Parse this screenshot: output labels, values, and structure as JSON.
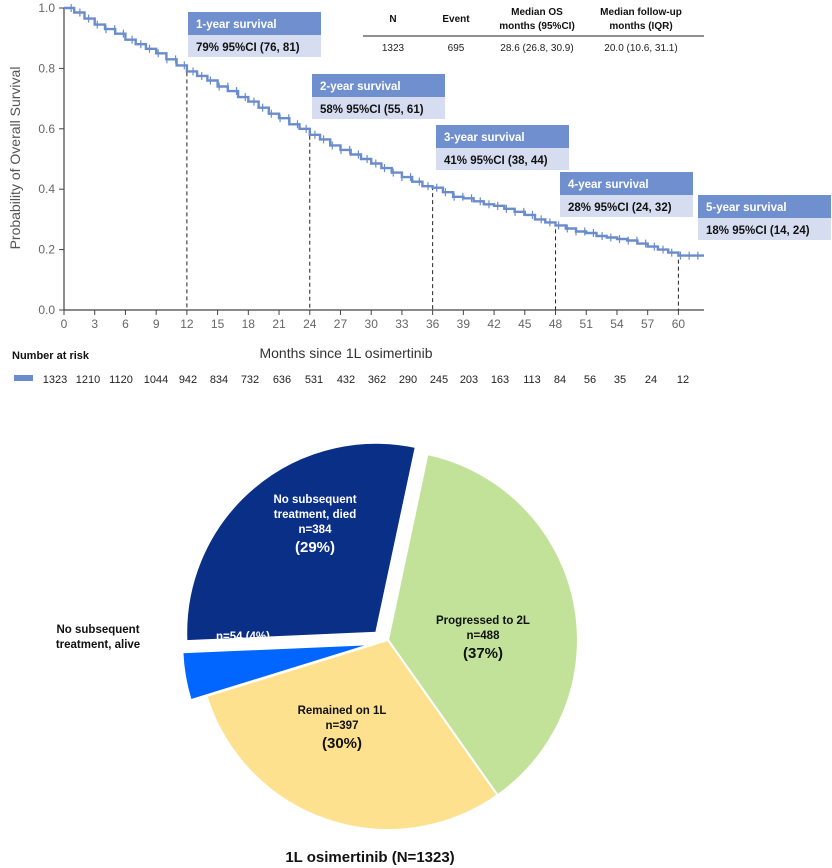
{
  "colors": {
    "km_line": "#6a8ccc",
    "box_header": "#6f8fce",
    "box_body": "#d6ddf0",
    "axis": "#444444",
    "tick_text": "#666666",
    "dashed": "#222222",
    "pie_dark": "#0a2f86",
    "pie_blue": "#0066ff",
    "pie_green": "#c2e29a",
    "pie_yellow": "#fde18e"
  },
  "chart_data": [
    {
      "type": "line",
      "subtype": "kaplan-meier",
      "title": "",
      "xlabel": "Months since 1L osimertinib",
      "ylabel": "Probability of Overall Survival",
      "xlim": [
        0,
        62.5
      ],
      "ylim": [
        0,
        1.0
      ],
      "x_ticks": [
        0,
        3,
        6,
        9,
        12,
        15,
        18,
        21,
        24,
        27,
        30,
        33,
        36,
        39,
        42,
        45,
        48,
        51,
        54,
        57,
        60
      ],
      "y_ticks": [
        "0.0",
        "0.2",
        "0.4",
        "0.6",
        "0.8",
        "1.0"
      ],
      "series": [
        {
          "name": "1L osimertinib",
          "x": [
            0,
            1,
            2,
            3,
            4,
            5,
            6,
            7,
            8,
            9,
            10,
            11,
            12,
            13,
            14,
            15,
            16,
            17,
            18,
            19,
            20,
            21,
            22,
            23,
            24,
            25,
            26,
            27,
            28,
            29,
            30,
            31,
            32,
            33,
            34,
            35,
            36,
            37,
            38,
            39,
            40,
            41,
            42,
            43,
            44,
            45,
            46,
            47,
            48,
            49,
            50,
            51,
            52,
            53,
            54,
            55,
            56,
            57,
            58,
            59,
            60,
            61,
            62.5
          ],
          "y": [
            1.0,
            0.985,
            0.965,
            0.945,
            0.93,
            0.915,
            0.895,
            0.88,
            0.865,
            0.85,
            0.83,
            0.81,
            0.79,
            0.775,
            0.76,
            0.74,
            0.725,
            0.705,
            0.69,
            0.67,
            0.65,
            0.635,
            0.615,
            0.6,
            0.58,
            0.565,
            0.545,
            0.53,
            0.515,
            0.5,
            0.485,
            0.47,
            0.455,
            0.44,
            0.425,
            0.41,
            0.405,
            0.39,
            0.375,
            0.37,
            0.36,
            0.35,
            0.345,
            0.335,
            0.325,
            0.315,
            0.3,
            0.29,
            0.28,
            0.27,
            0.26,
            0.255,
            0.245,
            0.24,
            0.235,
            0.23,
            0.22,
            0.21,
            0.2,
            0.19,
            0.18,
            0.18,
            0.18
          ]
        }
      ],
      "milestones": [
        {
          "month": 12,
          "title": "1-year survival",
          "value": "79%  95%CI (76, 81)"
        },
        {
          "month": 24,
          "title": "2-year survival",
          "value": "58%  95%CI (55, 61)"
        },
        {
          "month": 36,
          "title": "3-year survival",
          "value": "41%  95%CI (38, 44)"
        },
        {
          "month": 48,
          "title": "4-year survival",
          "value": "28%  95%CI (24, 32)"
        },
        {
          "month": 60,
          "title": "5-year survival",
          "value": "18%  95%CI (14, 24)"
        }
      ]
    },
    {
      "type": "pie",
      "title": "1L osimertinib (N=1323)",
      "slices": [
        {
          "name": "Progressed to 2L",
          "n": 488,
          "pct": 37,
          "lines": [
            "Progressed to 2L",
            "n=488"
          ],
          "pct_label": "(37%)",
          "color_key": "pie_green"
        },
        {
          "name": "Remained on 1L",
          "n": 397,
          "pct": 30,
          "lines": [
            "Remained on 1L",
            "n=397"
          ],
          "pct_label": "(30%)",
          "color_key": "pie_yellow"
        },
        {
          "name": "No subsequent treatment, alive",
          "n": 54,
          "pct": 4,
          "lines": [
            "n=54 (4%)"
          ],
          "pct_label": "",
          "external_label": [
            "No subsequent",
            "treatment, alive"
          ],
          "color_key": "pie_blue",
          "exploded": true
        },
        {
          "name": "No subsequent treatment, died",
          "n": 384,
          "pct": 29,
          "lines": [
            "No subsequent",
            "treatment, died",
            "n=384"
          ],
          "pct_label": "(29%)",
          "color_key": "pie_dark",
          "exploded": true
        }
      ]
    }
  ],
  "summary_table": {
    "headers": [
      [
        "N"
      ],
      [
        "Event"
      ],
      [
        "Median OS",
        "months (95%CI)"
      ],
      [
        "Median follow-up",
        "months (IQR)"
      ]
    ],
    "row": [
      "1323",
      "695",
      "28.6 (26.8, 30.9)",
      "20.0 (10.6, 31.1)"
    ]
  },
  "risk_table": {
    "title": "Number at risk",
    "values": [
      "1323",
      "1210",
      "1120",
      "1044",
      "942",
      "834",
      "732",
      "636",
      "531",
      "432",
      "362",
      "290",
      "245",
      "203",
      "163",
      "113",
      "84",
      "56",
      "35",
      "24",
      "12"
    ]
  }
}
